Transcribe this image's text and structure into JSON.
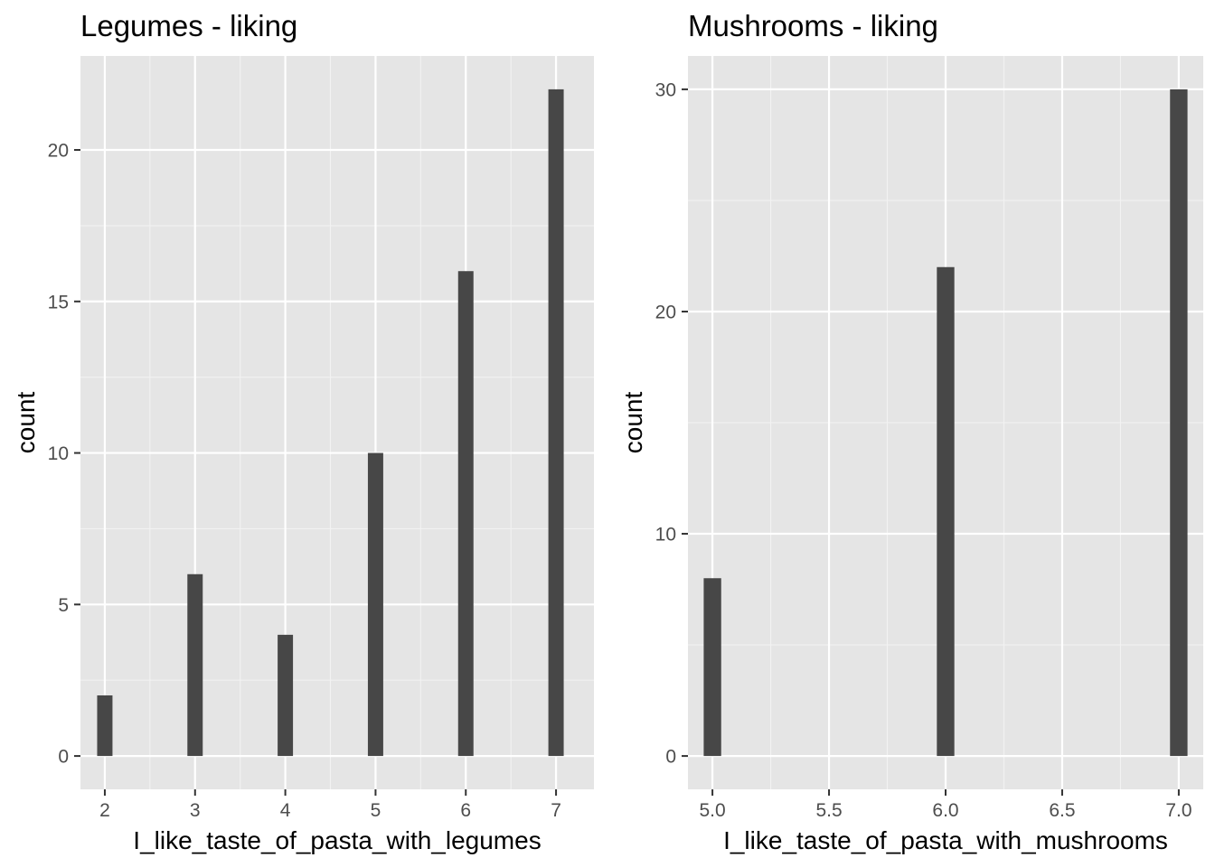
{
  "chart_data": [
    {
      "type": "bar",
      "title": "Legumes - liking",
      "xlabel": "I_like_taste_of_pasta_with_legumes",
      "ylabel": "count",
      "x": [
        2,
        3,
        4,
        5,
        6,
        7
      ],
      "values": [
        2,
        6,
        4,
        10,
        16,
        22
      ],
      "xlim": [
        1.73,
        7.42
      ],
      "ylim": [
        -1.1,
        23.1
      ],
      "xticks": [
        2,
        3,
        4,
        5,
        6,
        7
      ],
      "xtick_labels": [
        "2",
        "3",
        "4",
        "5",
        "6",
        "7"
      ],
      "yticks": [
        0,
        5,
        10,
        15,
        20
      ],
      "ytick_labels": [
        "0",
        "5",
        "10",
        "15",
        "20"
      ],
      "bar_width": 0.17,
      "bar_color": "#474747",
      "panel_background": "#e5e5e5",
      "grid": true,
      "legend": "none"
    },
    {
      "type": "bar",
      "title": "Mushrooms - liking",
      "xlabel": "I_like_taste_of_pasta_with_mushrooms",
      "ylabel": "count",
      "x": [
        5.0,
        6.0,
        7.0
      ],
      "values": [
        8,
        22,
        30
      ],
      "xlim": [
        4.895,
        7.105
      ],
      "ylim": [
        -1.5,
        31.5
      ],
      "xticks": [
        5.0,
        5.5,
        6.0,
        6.5,
        7.0
      ],
      "xtick_labels": [
        "5.0",
        "5.5",
        "6.0",
        "6.5",
        "7.0"
      ],
      "yticks": [
        0,
        10,
        20,
        30
      ],
      "ytick_labels": [
        "0",
        "10",
        "20",
        "30"
      ],
      "bar_width": 0.075,
      "bar_color": "#474747",
      "panel_background": "#e5e5e5",
      "grid": true,
      "legend": "none"
    }
  ]
}
